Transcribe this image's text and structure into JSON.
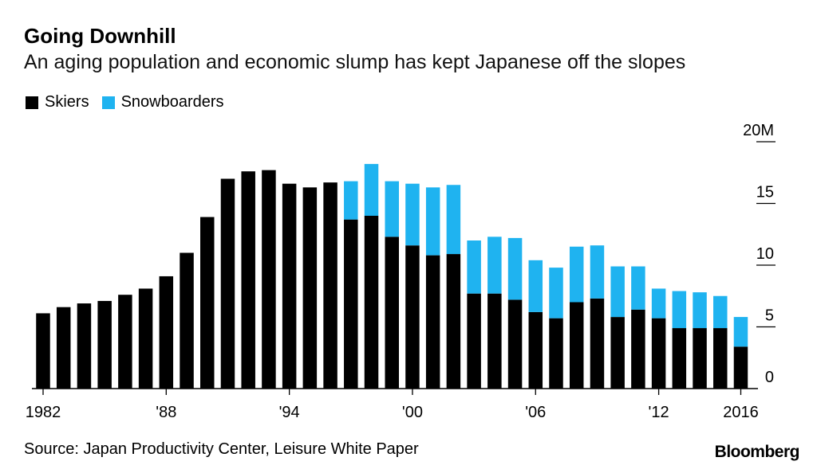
{
  "title": "Going Downhill",
  "subtitle": "An aging population and economic slump has kept Japanese off the slopes",
  "source": "Source: Japan Productivity Center, Leisure White Paper",
  "brand": "Bloomberg",
  "colors": {
    "skiers": "#000000",
    "snowboarders": "#1fb3f0",
    "axis": "#000000"
  },
  "chart_data": {
    "type": "bar",
    "stacked": true,
    "title": "Going Downhill",
    "xlabel": "",
    "ylabel": "",
    "unit_label": "20M",
    "ylim": [
      0,
      20
    ],
    "yticks": [
      0,
      5,
      10,
      15,
      20
    ],
    "ytick_labels": [
      "0",
      "5",
      "10",
      "15",
      "20M"
    ],
    "xtick_labels": [
      {
        "year": 1982,
        "label": "1982"
      },
      {
        "year": 1988,
        "label": "'88"
      },
      {
        "year": 1994,
        "label": "'94"
      },
      {
        "year": 2000,
        "label": "'00"
      },
      {
        "year": 2006,
        "label": "'06"
      },
      {
        "year": 2012,
        "label": "'12"
      },
      {
        "year": 2016,
        "label": "2016"
      }
    ],
    "legend_position": "top-left",
    "categories": [
      1982,
      1983,
      1984,
      1985,
      1986,
      1987,
      1988,
      1989,
      1990,
      1991,
      1992,
      1993,
      1994,
      1995,
      1996,
      1997,
      1998,
      1999,
      2000,
      2001,
      2002,
      2003,
      2004,
      2005,
      2006,
      2007,
      2008,
      2009,
      2010,
      2011,
      2012,
      2013,
      2014,
      2015,
      2016
    ],
    "series": [
      {
        "name": "Skiers",
        "values": [
          6.1,
          6.6,
          6.9,
          7.1,
          7.6,
          8.1,
          9.1,
          11.0,
          13.9,
          17.0,
          17.6,
          17.7,
          16.6,
          16.3,
          16.7,
          13.7,
          14.0,
          12.3,
          11.6,
          10.8,
          10.9,
          7.7,
          7.7,
          7.2,
          6.2,
          5.7,
          7.0,
          7.3,
          5.8,
          6.4,
          5.7,
          4.9,
          4.9,
          4.9,
          3.4
        ]
      },
      {
        "name": "Snowboarders",
        "values": [
          0,
          0,
          0,
          0,
          0,
          0,
          0,
          0,
          0,
          0,
          0,
          0,
          0,
          0,
          0,
          3.1,
          4.2,
          4.5,
          5.0,
          5.5,
          5.6,
          4.3,
          4.6,
          5.0,
          4.2,
          4.1,
          4.5,
          4.3,
          4.1,
          3.5,
          2.4,
          3.0,
          2.9,
          2.6,
          2.4
        ]
      }
    ]
  }
}
